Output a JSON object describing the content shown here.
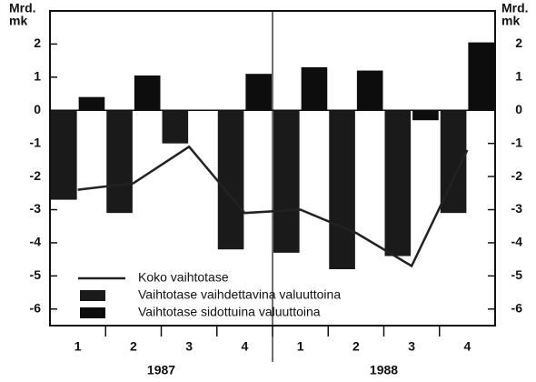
{
  "chart_data": {
    "type": "bar",
    "y_label_lines": [
      "Mrd.",
      "mk"
    ],
    "categories": [
      "1",
      "2",
      "3",
      "4",
      "1",
      "2",
      "3",
      "4"
    ],
    "groups": [
      {
        "label": "1987",
        "size": 4
      },
      {
        "label": "1988",
        "size": 4
      }
    ],
    "series": [
      {
        "name": "Koko vaihtotase",
        "type": "line",
        "color": "#222222",
        "values": [
          -2.4,
          -2.2,
          -1.1,
          -3.1,
          -3.0,
          -3.7,
          -4.7,
          -1.2
        ]
      },
      {
        "name": "Vaihtotase vaihdettavina valuuttoina",
        "type": "bar",
        "color": "#1a1a1a",
        "values": [
          -2.7,
          -3.1,
          -1.0,
          -4.2,
          -4.3,
          -4.9,
          -4.4,
          -3.1
        ]
      },
      {
        "name": "Vaihtotase sidottuina valuuttoina",
        "type": "bar",
        "color": "#0d0d0d",
        "values": [
          0.4,
          1.05,
          0,
          1.1,
          1.3,
          1.2,
          -0.3,
          2.05
        ]
      }
    ],
    "ylim": [
      -6.5,
      3
    ],
    "yticks": [
      2,
      1,
      0,
      -1,
      -2,
      -3,
      -4,
      -5,
      -6
    ],
    "legend": "lower left"
  }
}
